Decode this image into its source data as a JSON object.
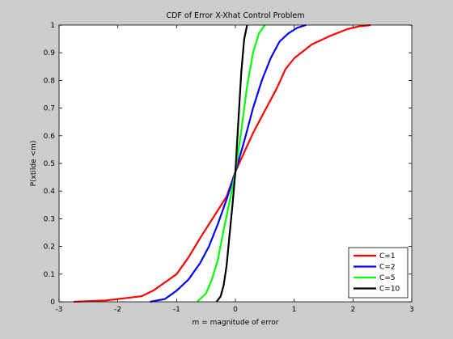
{
  "chart_data": {
    "type": "line",
    "title": "CDF of Error X-Xhat Control Problem",
    "xlabel": "m = magnitude of error",
    "ylabel": "P(xtilde <m)",
    "xlim": [
      -3,
      3
    ],
    "ylim": [
      0,
      1
    ],
    "xticks": [
      "-3",
      "-2",
      "-1",
      "0",
      "1",
      "2",
      "3"
    ],
    "yticks": [
      "0",
      "0.1",
      "0.2",
      "0.3",
      "0.4",
      "0.5",
      "0.6",
      "0.7",
      "0.8",
      "0.9",
      "1"
    ],
    "grid": false,
    "legend_position": "bottom-right",
    "series": [
      {
        "name": "C=1",
        "color": "#ff0000",
        "x": [
          -2.75,
          -2.2,
          -1.6,
          -1.4,
          -1.2,
          -1.0,
          -0.8,
          -0.6,
          -0.45,
          -0.3,
          -0.15,
          0.0,
          0.15,
          0.3,
          0.5,
          0.7,
          0.85,
          1.0,
          1.3,
          1.6,
          1.9,
          2.1,
          2.3
        ],
        "y": [
          0.0,
          0.005,
          0.02,
          0.04,
          0.07,
          0.1,
          0.16,
          0.23,
          0.28,
          0.33,
          0.38,
          0.47,
          0.54,
          0.61,
          0.69,
          0.77,
          0.84,
          0.88,
          0.93,
          0.96,
          0.985,
          0.995,
          1.0
        ]
      },
      {
        "name": "C=2",
        "color": "#0000ff",
        "x": [
          -1.45,
          -1.2,
          -1.0,
          -0.8,
          -0.6,
          -0.45,
          -0.3,
          -0.15,
          0.0,
          0.15,
          0.3,
          0.45,
          0.6,
          0.75,
          0.9,
          1.05,
          1.2
        ],
        "y": [
          0.0,
          0.01,
          0.04,
          0.08,
          0.14,
          0.2,
          0.28,
          0.37,
          0.47,
          0.58,
          0.7,
          0.8,
          0.88,
          0.94,
          0.97,
          0.99,
          1.0
        ]
      },
      {
        "name": "C=5",
        "color": "#00ff00",
        "x": [
          -0.65,
          -0.5,
          -0.4,
          -0.3,
          -0.2,
          -0.1,
          0.0,
          0.1,
          0.2,
          0.3,
          0.4,
          0.5
        ],
        "y": [
          0.0,
          0.03,
          0.08,
          0.15,
          0.26,
          0.36,
          0.47,
          0.62,
          0.78,
          0.9,
          0.97,
          1.0
        ]
      },
      {
        "name": "C=10",
        "color": "#000000",
        "x": [
          -0.32,
          -0.25,
          -0.2,
          -0.15,
          -0.1,
          -0.05,
          0.0,
          0.05,
          0.1,
          0.15,
          0.2
        ],
        "y": [
          0.0,
          0.02,
          0.06,
          0.13,
          0.24,
          0.35,
          0.47,
          0.65,
          0.83,
          0.95,
          1.0
        ]
      }
    ]
  }
}
